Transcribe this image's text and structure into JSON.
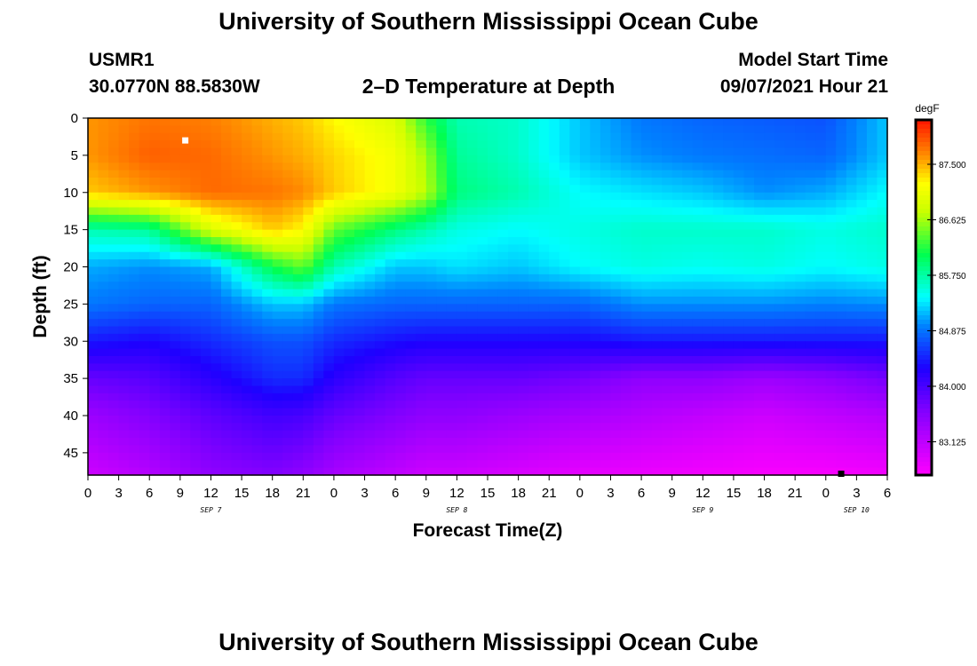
{
  "header": {
    "title": "University of Southern Mississippi Ocean Cube",
    "station": "USMR1",
    "coords": "30.0770N  88.5830W",
    "plot_title": "2–D Temperature at Depth",
    "model_start_label": "Model Start Time",
    "model_start_time": "09/07/2021 Hour 21"
  },
  "footer": {
    "title": "University of Southern Mississippi Ocean Cube"
  },
  "chart_data": {
    "type": "heatmap",
    "title": "2–D Temperature at Depth",
    "xlabel": "Forecast Time(Z)",
    "ylabel": "Depth (ft)",
    "xlim_hours": [
      0,
      78
    ],
    "ylim": [
      0,
      48
    ],
    "y_inverted": true,
    "x_ticks": [
      "0",
      "3",
      "6",
      "9",
      "12",
      "15",
      "18",
      "21",
      "0",
      "3",
      "6",
      "9",
      "12",
      "15",
      "18",
      "21",
      "0",
      "3",
      "6",
      "9",
      "12",
      "15",
      "18",
      "21",
      "0",
      "3",
      "6"
    ],
    "y_ticks": [
      0,
      5,
      10,
      15,
      20,
      25,
      30,
      35,
      40,
      45
    ],
    "day_labels": [
      {
        "label": "SEP 7",
        "hour": 12
      },
      {
        "label": "SEP 8",
        "hour": 36
      },
      {
        "label": "SEP 9",
        "hour": 60
      },
      {
        "label": "SEP 10",
        "hour": 75
      }
    ],
    "colorbar": {
      "unit": "degF",
      "min": 82.6,
      "max": 88.2,
      "ticks": [
        "87.500",
        "86.625",
        "85.750",
        "84.875",
        "84.000",
        "83.125"
      ]
    },
    "grid_depths_ft": [
      0,
      5,
      10,
      15,
      20,
      25,
      30,
      35,
      40,
      48
    ],
    "grid_hours": [
      0,
      6,
      12,
      18,
      21,
      24,
      30,
      33,
      36,
      42,
      48,
      54,
      60,
      66,
      72,
      78
    ],
    "temperature_degF": [
      [
        87.6,
        87.75,
        87.7,
        87.5,
        87.4,
        87.2,
        86.9,
        86.2,
        85.7,
        85.6,
        85.2,
        84.9,
        84.8,
        84.75,
        84.7,
        85.2
      ],
      [
        87.6,
        87.85,
        87.8,
        87.6,
        87.5,
        87.35,
        87.1,
        86.6,
        85.8,
        85.6,
        85.2,
        85.0,
        84.9,
        84.85,
        84.8,
        85.2
      ],
      [
        87.4,
        87.6,
        87.8,
        87.75,
        87.65,
        87.4,
        87.1,
        86.7,
        85.9,
        85.7,
        85.4,
        85.3,
        85.2,
        85.0,
        85.1,
        85.4
      ],
      [
        85.7,
        85.8,
        86.9,
        87.4,
        87.2,
        86.4,
        85.9,
        85.7,
        85.5,
        85.4,
        85.5,
        85.6,
        85.6,
        85.6,
        85.5,
        85.6
      ],
      [
        85.1,
        85.0,
        85.1,
        86.1,
        86.4,
        85.7,
        85.2,
        85.2,
        85.3,
        85.2,
        85.4,
        85.5,
        85.45,
        85.5,
        85.4,
        85.5
      ],
      [
        84.9,
        84.8,
        84.8,
        85.2,
        85.2,
        84.9,
        84.8,
        84.8,
        84.8,
        84.8,
        84.8,
        85.0,
        85.0,
        85.0,
        84.95,
        85.0
      ],
      [
        84.4,
        84.3,
        84.5,
        84.7,
        84.7,
        84.5,
        84.35,
        84.3,
        84.3,
        84.3,
        84.3,
        84.4,
        84.4,
        84.4,
        84.4,
        84.4
      ],
      [
        83.8,
        83.9,
        84.2,
        84.5,
        84.5,
        84.2,
        83.9,
        83.8,
        83.8,
        83.8,
        83.7,
        83.5,
        83.5,
        83.4,
        83.5,
        83.7
      ],
      [
        83.4,
        83.6,
        83.85,
        84.05,
        84.0,
        83.8,
        83.6,
        83.5,
        83.5,
        83.4,
        83.3,
        83.2,
        83.1,
        83.0,
        83.1,
        83.2
      ],
      [
        83.0,
        83.2,
        83.5,
        83.6,
        83.5,
        83.3,
        83.1,
        83.0,
        83.0,
        82.9,
        82.8,
        82.75,
        82.7,
        82.65,
        82.65,
        82.7
      ]
    ],
    "markers": [
      {
        "name": "white-marker",
        "hour": 9.5,
        "depth_ft": 3,
        "color": "#ffffff"
      },
      {
        "name": "black-marker",
        "hour": 73.5,
        "depth_ft": 48,
        "color": "#000000"
      }
    ]
  }
}
